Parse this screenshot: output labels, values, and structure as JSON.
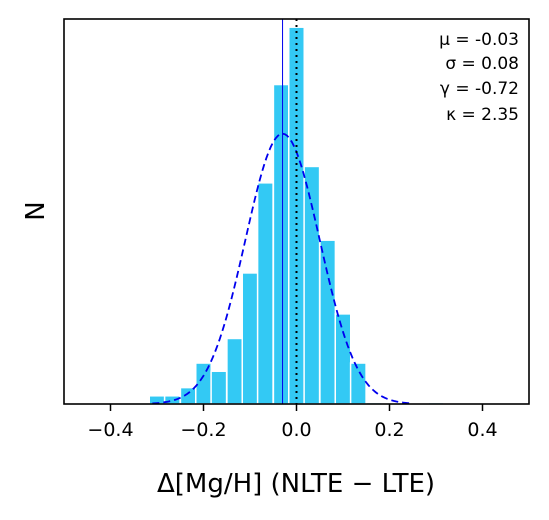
{
  "chart_data": {
    "type": "bar",
    "xlabel": "Δ[Mg/H] (NLTE − LTE)",
    "ylabel": "N",
    "xlim": [
      -0.5,
      0.5
    ],
    "ylim": [
      0,
      47
    ],
    "xticks": [
      {
        "value": -0.4,
        "label": "−0.4"
      },
      {
        "value": -0.2,
        "label": "−0.2"
      },
      {
        "value": 0.0,
        "label": "0.0"
      },
      {
        "value": 0.2,
        "label": "0.2"
      },
      {
        "value": 0.4,
        "label": "0.4"
      }
    ],
    "bin_width": 0.0333,
    "bins": [
      {
        "center": -0.333,
        "count": 0.1
      },
      {
        "center": -0.3,
        "count": 1
      },
      {
        "center": -0.267,
        "count": 1
      },
      {
        "center": -0.233,
        "count": 2
      },
      {
        "center": -0.2,
        "count": 5
      },
      {
        "center": -0.167,
        "count": 4
      },
      {
        "center": -0.133,
        "count": 8
      },
      {
        "center": -0.1,
        "count": 16
      },
      {
        "center": -0.067,
        "count": 27
      },
      {
        "center": -0.033,
        "count": 39
      },
      {
        "center": 0.0,
        "count": 46
      },
      {
        "center": 0.033,
        "count": 29
      },
      {
        "center": 0.067,
        "count": 20
      },
      {
        "center": 0.1,
        "count": 11
      },
      {
        "center": 0.133,
        "count": 5
      },
      {
        "center": 0.167,
        "count": 0.2
      },
      {
        "center": 0.3,
        "count": 0.2
      }
    ],
    "gaussian_fit": {
      "mu": -0.03,
      "sigma": 0.08,
      "peak": 33,
      "color": "#0000ee",
      "style": "dashed"
    },
    "mean_line": {
      "x": -0.03,
      "color": "#0000ee"
    },
    "zero_line": {
      "x": 0.0,
      "color": "#000000",
      "style": "dotted"
    },
    "bar_color": "#33c9f4",
    "stats": {
      "mu_label": "μ = -0.03",
      "sigma_label": "σ = 0.08",
      "gamma_label": "γ = -0.72",
      "kappa_label": "κ = 2.35"
    }
  }
}
